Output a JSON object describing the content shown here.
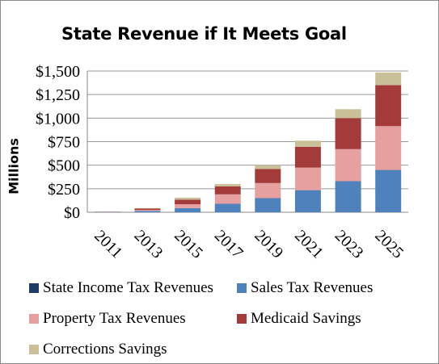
{
  "chart_data": {
    "type": "bar",
    "stacked": true,
    "title": "State Revenue if It Meets Goal",
    "ylabel": "Millions",
    "xlabel": "",
    "categories": [
      "2011",
      "2013",
      "2015",
      "2017",
      "2019",
      "2021",
      "2023",
      "2025"
    ],
    "ylim": [
      0,
      1500
    ],
    "yticks": [
      "$0",
      "$250",
      "$500",
      "$750",
      "$1,000",
      "$1,250",
      "$1,500"
    ],
    "ytick_values": [
      0,
      250,
      500,
      750,
      1000,
      1250,
      1500
    ],
    "grid": true,
    "legend_position": "bottom",
    "series": [
      {
        "name": "State Income Tax Revenues",
        "color": "#1f3b66",
        "values": [
          0,
          0,
          0,
          0,
          0,
          0,
          0,
          0
        ]
      },
      {
        "name": "Sales Tax Revenues",
        "color": "#4f81bd",
        "values": [
          3,
          15,
          45,
          90,
          150,
          235,
          330,
          450
        ]
      },
      {
        "name": "Property Tax Revenues",
        "color": "#e6a0a0",
        "values": [
          2,
          10,
          40,
          100,
          160,
          240,
          340,
          465
        ]
      },
      {
        "name": "Medicaid Savings",
        "color": "#a33b3b",
        "values": [
          2,
          15,
          50,
          85,
          150,
          220,
          330,
          435
        ]
      },
      {
        "name": "Corrections Savings",
        "color": "#c9c09a",
        "values": [
          1,
          5,
          20,
          25,
          40,
          65,
          95,
          135
        ]
      }
    ]
  }
}
